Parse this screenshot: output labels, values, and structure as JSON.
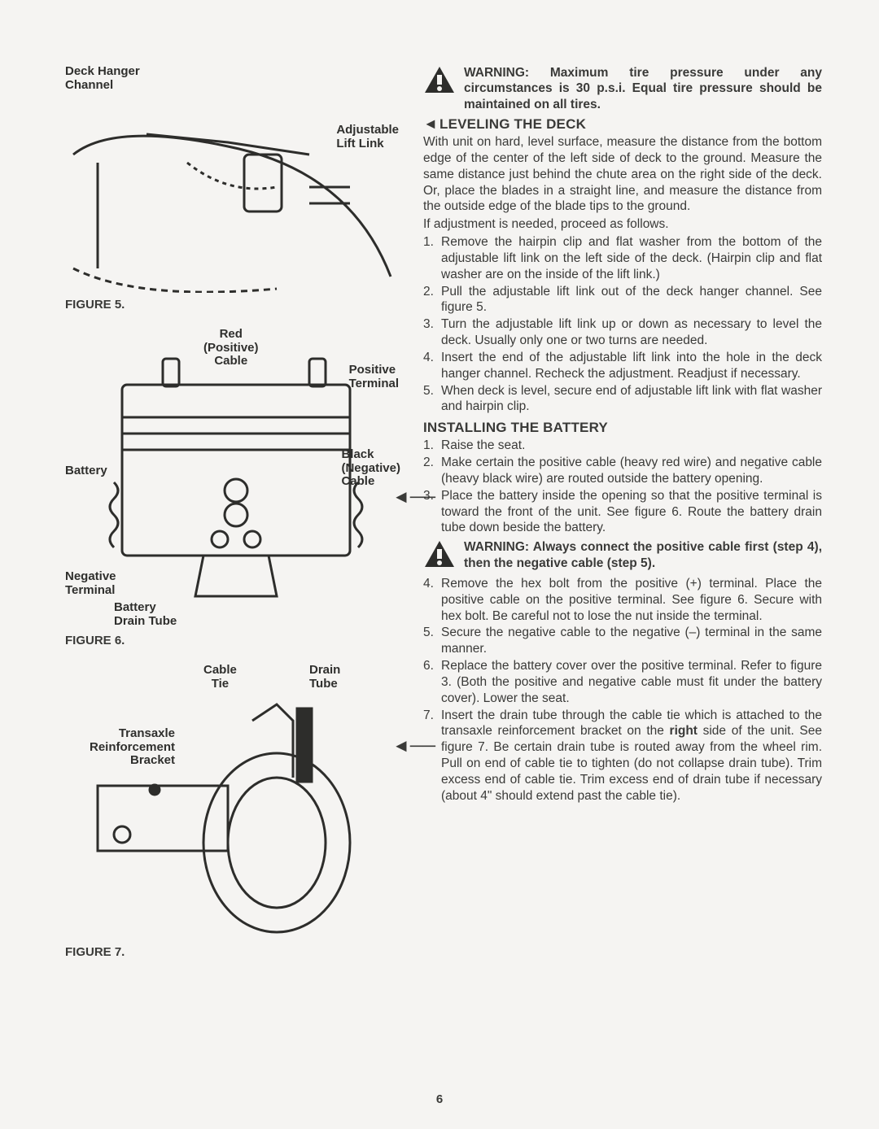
{
  "page_number": "6",
  "figures": {
    "fig5": {
      "caption": "FIGURE 5.",
      "labels": {
        "deck_hanger": "Deck Hanger\nChannel",
        "adjustable_lift": "Adjustable\nLift Link"
      }
    },
    "fig6": {
      "caption": "FIGURE 6.",
      "labels": {
        "red_cable": "Red\n(Positive)\nCable",
        "positive_terminal": "Positive\nTerminal",
        "black_cable": "Black\n(Negative)\nCable",
        "battery": "Battery",
        "neg_terminal": "Negative\nTerminal",
        "drain_tube": "Battery\nDrain Tube"
      }
    },
    "fig7": {
      "caption": "FIGURE 7.",
      "labels": {
        "cable_tie": "Cable\nTie",
        "drain_tube": "Drain\nTube",
        "bracket": "Transaxle\nReinforcement\nBracket"
      }
    }
  },
  "warnings": {
    "tire_pressure": "WARNING: Maximum tire pressure under any circumstances is 30 p.s.i. Equal tire pressure should be maintained on all tires.",
    "positive_first": "WARNING: Always connect the positive cable first (step 4), then the negative cable (step 5)."
  },
  "sections": {
    "leveling": {
      "heading": "LEVELING THE DECK",
      "intro": "With unit on hard, level surface, measure the distance from the bottom edge of the center of the left side of deck to the ground. Measure the same distance just behind the chute area on the right side of the deck. Or, place the blades in a straight line, and measure the distance from the outside edge of the blade tips to the ground.",
      "intro2": "If adjustment is needed, proceed as follows.",
      "steps": [
        "Remove the hairpin clip and flat washer from the bottom of the adjustable lift link on the left side of the deck. (Hairpin clip and flat washer are on the inside of the lift link.)",
        "Pull the adjustable lift link out of the deck hanger channel. See figure 5.",
        "Turn the adjustable lift link up or down as necessary to level the deck. Usually only one or two turns are needed.",
        "Insert the end of the adjustable lift link into the hole in the deck hanger channel. Recheck the adjustment. Readjust if necessary.",
        "When deck is level, secure end of adjustable lift link with flat washer and hairpin clip."
      ]
    },
    "battery": {
      "heading": "INSTALLING THE BATTERY",
      "steps_a": [
        "Raise the seat.",
        "Make certain the positive cable (heavy red wire) and negative cable (heavy black wire) are routed outside the battery opening.",
        "Place the battery inside the opening so that the positive terminal is toward the front of the unit. See figure 6. Route the battery drain tube down beside the battery."
      ],
      "steps_b": [
        "Remove the hex bolt from the positive (+) terminal. Place the positive cable on the positive terminal. See figure 6. Secure with hex bolt. Be careful not to lose the nut inside the terminal.",
        "Secure the negative cable to the negative (–) terminal in the same manner.",
        "Replace the battery cover over the positive terminal. Refer to figure 3. (Both the positive and negative cable must fit under the battery cover). Lower the seat.",
        "Insert the drain tube through the cable tie which is attached to the transaxle reinforcement bracket on the right side of the unit. See figure 7. Be certain drain tube is routed away from the wheel rim. Pull on end of cable tie to tighten (do not collapse drain tube). Trim excess end of cable tie. Trim excess end of drain tube if necessary (about 4\" should extend past the cable tie)."
      ],
      "right_bold": "right"
    }
  }
}
